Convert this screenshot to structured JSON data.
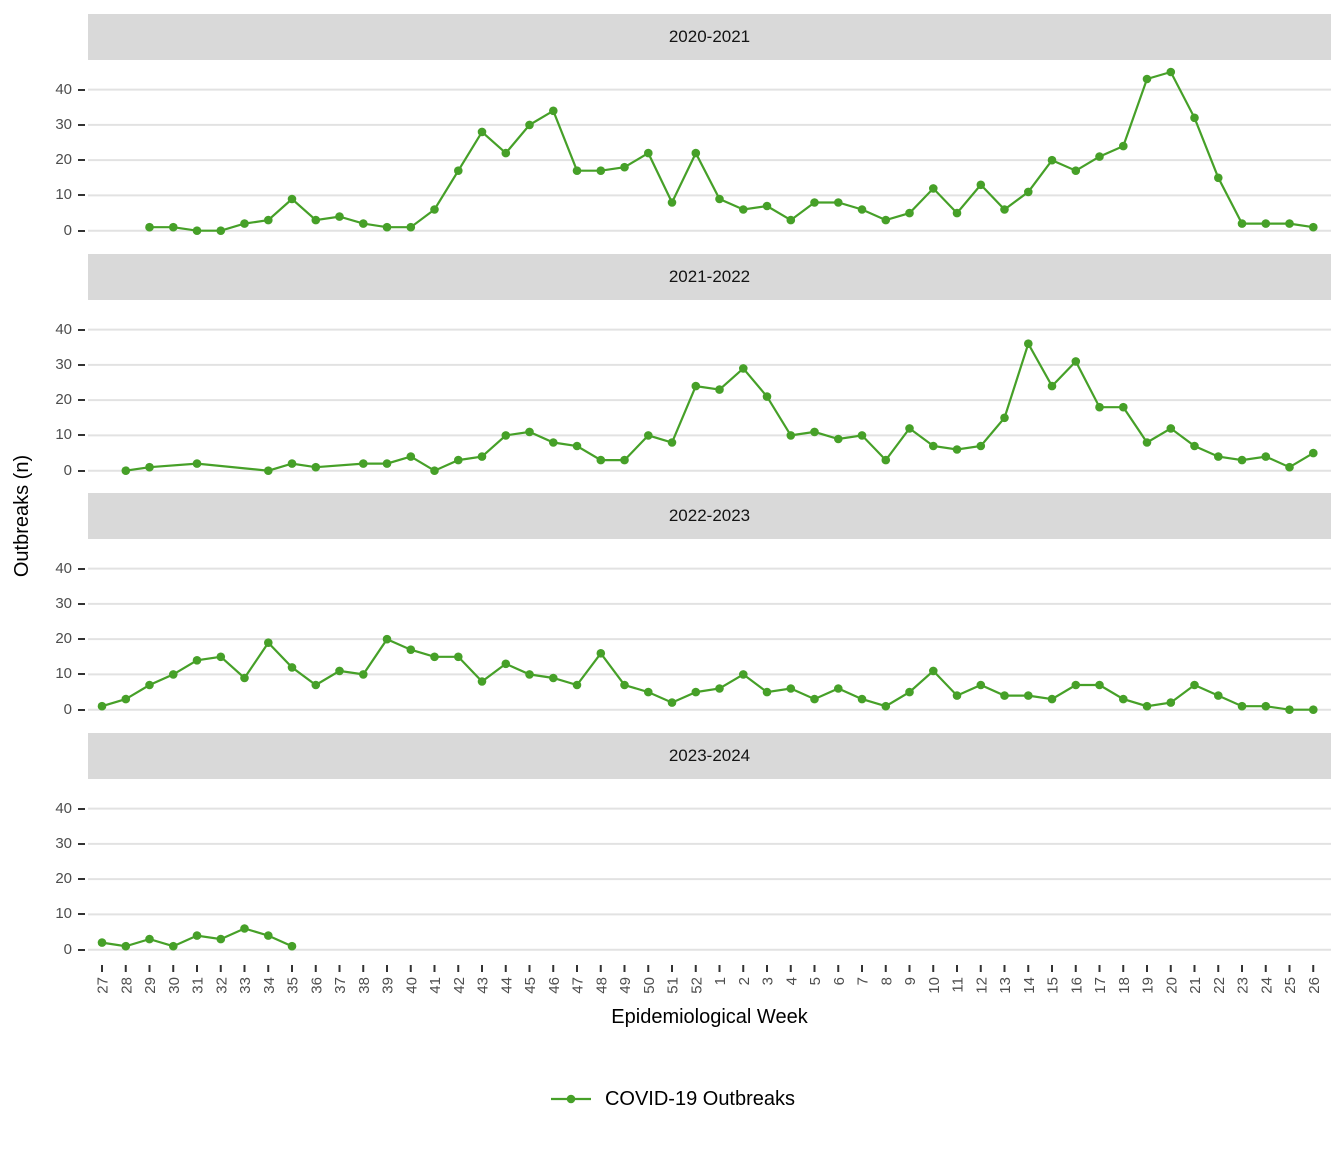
{
  "chart_data": {
    "type": "line",
    "xlabel": "Epidemiological Week",
    "ylabel": "Outbreaks (n)",
    "y_ticks": [
      0,
      10,
      20,
      30,
      40
    ],
    "ylim": [
      -2.25,
      47.25
    ],
    "grid": "horizontal-major-only",
    "x_categories": [
      "27",
      "28",
      "29",
      "30",
      "31",
      "32",
      "33",
      "34",
      "35",
      "36",
      "37",
      "38",
      "39",
      "40",
      "41",
      "42",
      "43",
      "44",
      "45",
      "46",
      "47",
      "48",
      "49",
      "50",
      "51",
      "52",
      "1",
      "2",
      "3",
      "4",
      "5",
      "6",
      "7",
      "8",
      "9",
      "10",
      "11",
      "12",
      "13",
      "14",
      "15",
      "16",
      "17",
      "18",
      "19",
      "20",
      "21",
      "22",
      "23",
      "24",
      "25",
      "26"
    ],
    "facets": [
      {
        "label": "2020-2021",
        "values": [
          null,
          null,
          1,
          1,
          0,
          0,
          2,
          3,
          9,
          3,
          4,
          2,
          1,
          1,
          6,
          17,
          28,
          22,
          30,
          34,
          17,
          17,
          18,
          22,
          8,
          22,
          9,
          6,
          7,
          3,
          8,
          8,
          6,
          3,
          5,
          12,
          5,
          13,
          6,
          11,
          20,
          17,
          21,
          24,
          43,
          45,
          32,
          15,
          2,
          2,
          2,
          1
        ]
      },
      {
        "label": "2021-2022",
        "values": [
          null,
          0,
          1,
          null,
          2,
          null,
          null,
          0,
          2,
          1,
          null,
          2,
          2,
          4,
          0,
          3,
          4,
          10,
          11,
          8,
          7,
          3,
          3,
          10,
          8,
          24,
          23,
          29,
          21,
          10,
          11,
          9,
          10,
          3,
          12,
          7,
          6,
          7,
          15,
          36,
          24,
          31,
          18,
          18,
          8,
          12,
          7,
          4,
          3,
          4,
          1,
          5
        ]
      },
      {
        "label": "2022-2023",
        "values": [
          1,
          3,
          7,
          10,
          14,
          15,
          9,
          19,
          12,
          7,
          11,
          10,
          20,
          17,
          15,
          15,
          8,
          13,
          10,
          9,
          7,
          16,
          7,
          5,
          2,
          5,
          6,
          10,
          5,
          6,
          3,
          6,
          3,
          1,
          5,
          11,
          4,
          7,
          4,
          4,
          3,
          7,
          7,
          3,
          1,
          2,
          7,
          4,
          1,
          1,
          0,
          0
        ]
      },
      {
        "label": "2023-2024",
        "values": [
          2,
          1,
          3,
          1,
          4,
          3,
          6,
          4,
          1,
          null,
          null,
          null,
          null,
          null,
          null,
          null,
          null,
          null,
          null,
          null,
          null,
          null,
          null,
          null,
          null,
          null,
          null,
          null,
          null,
          null,
          null,
          null,
          null,
          null,
          null,
          null,
          null,
          null,
          null,
          null,
          null,
          null,
          null,
          null,
          null,
          null,
          null,
          null,
          null,
          null,
          null,
          null
        ]
      }
    ],
    "legend": {
      "position": "bottom",
      "entries": [
        {
          "label": "COVID-19 Outbreaks",
          "color": "#46a028",
          "glyph": "line-with-point"
        }
      ]
    },
    "colors": {
      "line": "#46a028",
      "strip_bg": "#d9d9d9",
      "gridline": "#e2e2e2",
      "axis_text": "#4d4d4d",
      "tick_mark": "#333333",
      "panel_bg": "#ffffff"
    }
  }
}
